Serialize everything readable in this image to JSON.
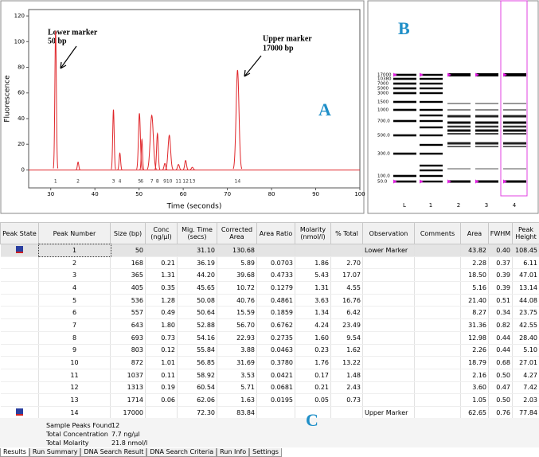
{
  "electropherogram": {
    "type": "line",
    "xlabel": "Time (seconds)",
    "ylabel": "Fluorescence",
    "xlim": [
      25,
      100
    ],
    "xticks": [
      30,
      40,
      50,
      60,
      70,
      80,
      90,
      100
    ],
    "ylim": [
      -14,
      125
    ],
    "yticks": [
      0,
      20,
      40,
      60,
      80,
      100,
      120
    ],
    "color": "#e0262a",
    "annotations": [
      "Lower marker",
      "50 bp",
      "Upper marker",
      "17000 bp"
    ],
    "panel_label": "A"
  },
  "gel": {
    "panel_label": "B",
    "ladder_labels": [
      "17000",
      "10380",
      "7000",
      "5000",
      "3000",
      "1500",
      "1000",
      "700.0",
      "500.0",
      "300.0",
      "100.0",
      "50.0"
    ],
    "lanes": [
      "L",
      "1",
      "2",
      "3",
      "4"
    ]
  },
  "table": {
    "columns": [
      "Peak State",
      "Peak Number",
      "Size (bp)",
      "Conc (ng/µl)",
      "Mig. Time (secs)",
      "Corrected Area",
      "Area Ratio",
      "Molarity (nmol/l)",
      "% Total",
      "Observation",
      "Comments",
      "Area",
      "FWHM",
      "Peak Height"
    ],
    "rows": [
      [
        null,
        "1",
        "50",
        null,
        "31.10",
        "130.68",
        null,
        null,
        null,
        "Lower Marker",
        null,
        "43.82",
        "0.40",
        "108.45"
      ],
      [
        null,
        "2",
        "168",
        "0.21",
        "36.19",
        "5.89",
        "0.0703",
        "1.86",
        "2.70",
        null,
        null,
        "2.28",
        "0.37",
        "6.11"
      ],
      [
        null,
        "3",
        "365",
        "1.31",
        "44.20",
        "39.68",
        "0.4733",
        "5.43",
        "17.07",
        null,
        null,
        "18.50",
        "0.39",
        "47.01"
      ],
      [
        null,
        "4",
        "405",
        "0.35",
        "45.65",
        "10.72",
        "0.1279",
        "1.31",
        "4.55",
        null,
        null,
        "5.16",
        "0.39",
        "13.14"
      ],
      [
        null,
        "5",
        "536",
        "1.28",
        "50.08",
        "40.76",
        "0.4861",
        "3.63",
        "16.76",
        null,
        null,
        "21.40",
        "0.51",
        "44.08"
      ],
      [
        null,
        "6",
        "557",
        "0.49",
        "50.64",
        "15.59",
        "0.1859",
        "1.34",
        "6.42",
        null,
        null,
        "8.27",
        "0.34",
        "23.75"
      ],
      [
        null,
        "7",
        "643",
        "1.80",
        "52.88",
        "56.70",
        "0.6762",
        "4.24",
        "23.49",
        null,
        null,
        "31.36",
        "0.82",
        "42.55"
      ],
      [
        null,
        "8",
        "693",
        "0.73",
        "54.16",
        "22.93",
        "0.2735",
        "1.60",
        "9.54",
        null,
        null,
        "12.98",
        "0.44",
        "28.40"
      ],
      [
        null,
        "9",
        "803",
        "0.12",
        "55.84",
        "3.88",
        "0.0463",
        "0.23",
        "1.62",
        null,
        null,
        "2.26",
        "0.44",
        "5.10"
      ],
      [
        null,
        "10",
        "872",
        "1.01",
        "56.85",
        "31.69",
        "0.3780",
        "1.76",
        "13.22",
        null,
        null,
        "18.79",
        "0.68",
        "27.01"
      ],
      [
        null,
        "11",
        "1037",
        "0.11",
        "58.92",
        "3.53",
        "0.0421",
        "0.17",
        "1.48",
        null,
        null,
        "2.16",
        "0.50",
        "4.27"
      ],
      [
        null,
        "12",
        "1313",
        "0.19",
        "60.54",
        "5.71",
        "0.0681",
        "0.21",
        "2.43",
        null,
        null,
        "3.60",
        "0.47",
        "7.42"
      ],
      [
        null,
        "13",
        "1714",
        "0.06",
        "62.06",
        "1.63",
        "0.0195",
        "0.05",
        "0.73",
        null,
        null,
        "1.05",
        "0.50",
        "2.03"
      ],
      [
        null,
        "14",
        "17000",
        null,
        "72.30",
        "83.84",
        null,
        null,
        null,
        "Upper Marker",
        null,
        "62.65",
        "0.76",
        "77.84"
      ]
    ]
  },
  "summary": {
    "panel_label": "C",
    "items": [
      [
        "Sample Peaks Found",
        "12"
      ],
      [
        "Total Concentration",
        "7.7 ng/µl"
      ],
      [
        "Total Molarity",
        "21.8 nmol/l"
      ]
    ]
  },
  "tabs": [
    "Results",
    "Run Summary",
    "DNA Search Result",
    "DNA Search Criteria",
    "Run Info",
    "Settings"
  ]
}
